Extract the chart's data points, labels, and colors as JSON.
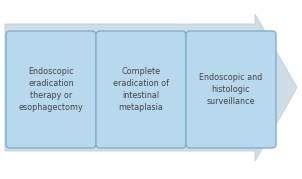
{
  "background_color": "#ffffff",
  "arrow_color": "#d0dce8",
  "arrow_edge_color": "#c0ccd8",
  "box_fill_color": "#b8d8ee",
  "box_edge_color": "#7ab0cc",
  "text_color": "#444444",
  "boxes": [
    {
      "label": "Endoscopic\neradication\ntherapy or\nesophagectomy"
    },
    {
      "label": "Complete\neradication of\nintestinal\nmetaplasia"
    },
    {
      "label": "Endoscopic and\nhistologic\nsurveillance"
    }
  ],
  "font_size": 5.8,
  "fig_width": 3.02,
  "fig_height": 1.79
}
